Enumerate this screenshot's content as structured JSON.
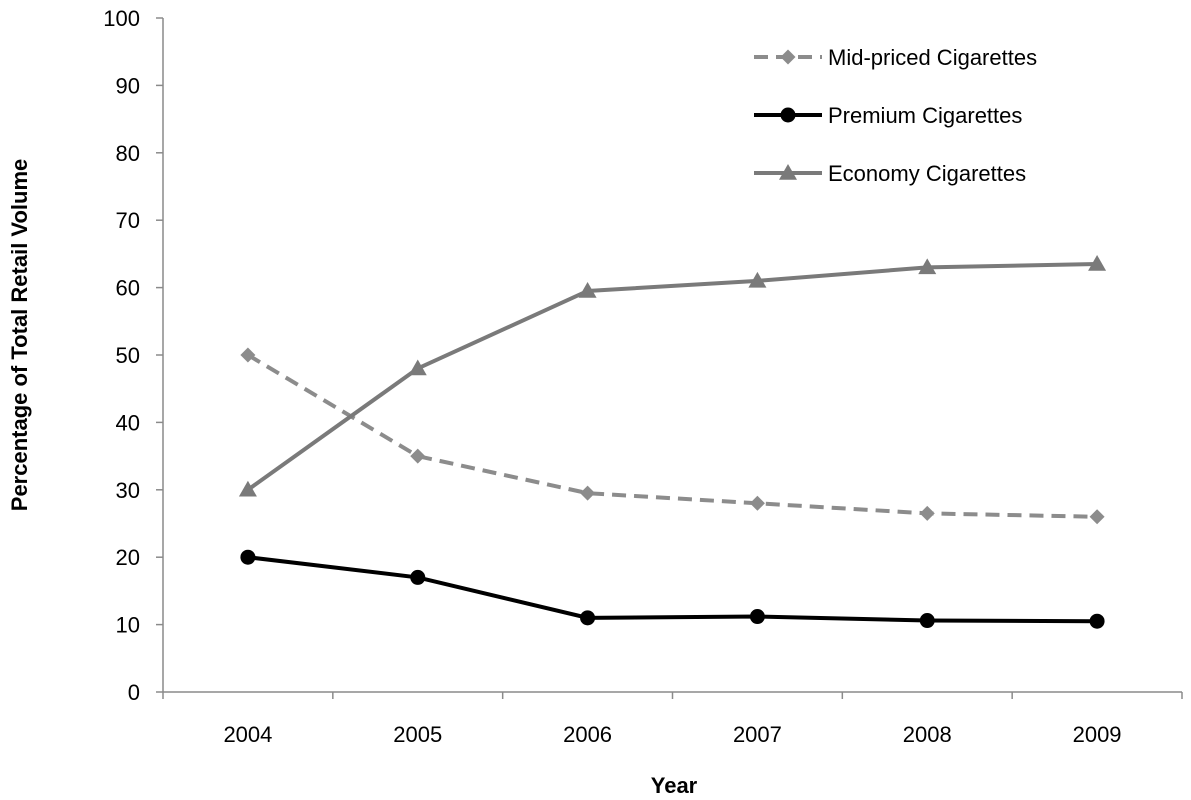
{
  "chart_data": {
    "type": "line",
    "title": "",
    "xlabel": "Year",
    "ylabel": "Percentage of Total Retail Volume",
    "categories": [
      "2004",
      "2005",
      "2006",
      "2007",
      "2008",
      "2009"
    ],
    "ylim": [
      0,
      100
    ],
    "yticks": [
      0,
      10,
      20,
      30,
      40,
      50,
      60,
      70,
      80,
      90,
      100
    ],
    "grid": false,
    "legend_position": "top-right",
    "series": [
      {
        "name": "Mid-priced Cigarettes",
        "values": [
          50,
          35,
          29.5,
          28,
          26.5,
          26
        ],
        "color": "#8c8c8c",
        "dash": "dashed",
        "marker": "diamond"
      },
      {
        "name": "Premium Cigarettes",
        "values": [
          20,
          17,
          11,
          11.2,
          10.6,
          10.5
        ],
        "color": "#000000",
        "dash": "solid",
        "marker": "circle"
      },
      {
        "name": "Economy Cigarettes",
        "values": [
          30,
          48,
          59.5,
          61,
          63,
          63.5
        ],
        "color": "#7a7a7a",
        "dash": "solid",
        "marker": "triangle"
      }
    ]
  }
}
